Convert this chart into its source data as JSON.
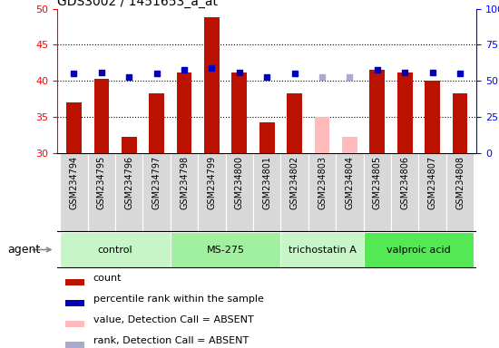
{
  "title": "GDS3002 / 1451653_a_at",
  "samples": [
    "GSM234794",
    "GSM234795",
    "GSM234796",
    "GSM234797",
    "GSM234798",
    "GSM234799",
    "GSM234800",
    "GSM234801",
    "GSM234802",
    "GSM234803",
    "GSM234804",
    "GSM234805",
    "GSM234806",
    "GSM234807",
    "GSM234808"
  ],
  "count_values": [
    37.0,
    40.3,
    32.2,
    38.3,
    41.2,
    48.8,
    41.2,
    34.3,
    38.3,
    null,
    null,
    41.5,
    41.2,
    40.0,
    38.3
  ],
  "count_absent": [
    null,
    null,
    null,
    null,
    null,
    null,
    null,
    null,
    null,
    35.0,
    32.2,
    null,
    null,
    null,
    null
  ],
  "rank_values": [
    41.0,
    41.2,
    40.5,
    41.0,
    41.5,
    41.8,
    41.2,
    40.5,
    41.0,
    null,
    null,
    41.5,
    41.2,
    41.2,
    41.0
  ],
  "rank_absent": [
    null,
    null,
    null,
    null,
    null,
    null,
    null,
    null,
    null,
    40.5,
    40.5,
    null,
    null,
    null,
    null
  ],
  "ylim_left": [
    30,
    50
  ],
  "ylim_right": [
    0,
    100
  ],
  "yticks_left": [
    30,
    35,
    40,
    45,
    50
  ],
  "yticks_right": [
    0,
    25,
    50,
    75,
    100
  ],
  "ytick_labels_right": [
    "0",
    "25",
    "50",
    "75",
    "100%"
  ],
  "groups": [
    {
      "label": "control",
      "start": 0,
      "end": 3,
      "color": "#c8f5c8"
    },
    {
      "label": "MS-275",
      "start": 4,
      "end": 7,
      "color": "#a0f0a0"
    },
    {
      "label": "trichostatin A",
      "start": 8,
      "end": 10,
      "color": "#c8f5c8"
    },
    {
      "label": "valproic acid",
      "start": 11,
      "end": 14,
      "color": "#55e855"
    }
  ],
  "bar_color_present": "#bb1100",
  "bar_color_absent": "#ffbbbb",
  "rank_color_present": "#0000bb",
  "rank_color_absent": "#aaaacc",
  "agent_label": "agent",
  "legend_items": [
    {
      "label": "count",
      "color": "#bb1100"
    },
    {
      "label": "percentile rank within the sample",
      "color": "#0000bb"
    },
    {
      "label": "value, Detection Call = ABSENT",
      "color": "#ffbbbb"
    },
    {
      "label": "rank, Detection Call = ABSENT",
      "color": "#aaaacc"
    }
  ]
}
